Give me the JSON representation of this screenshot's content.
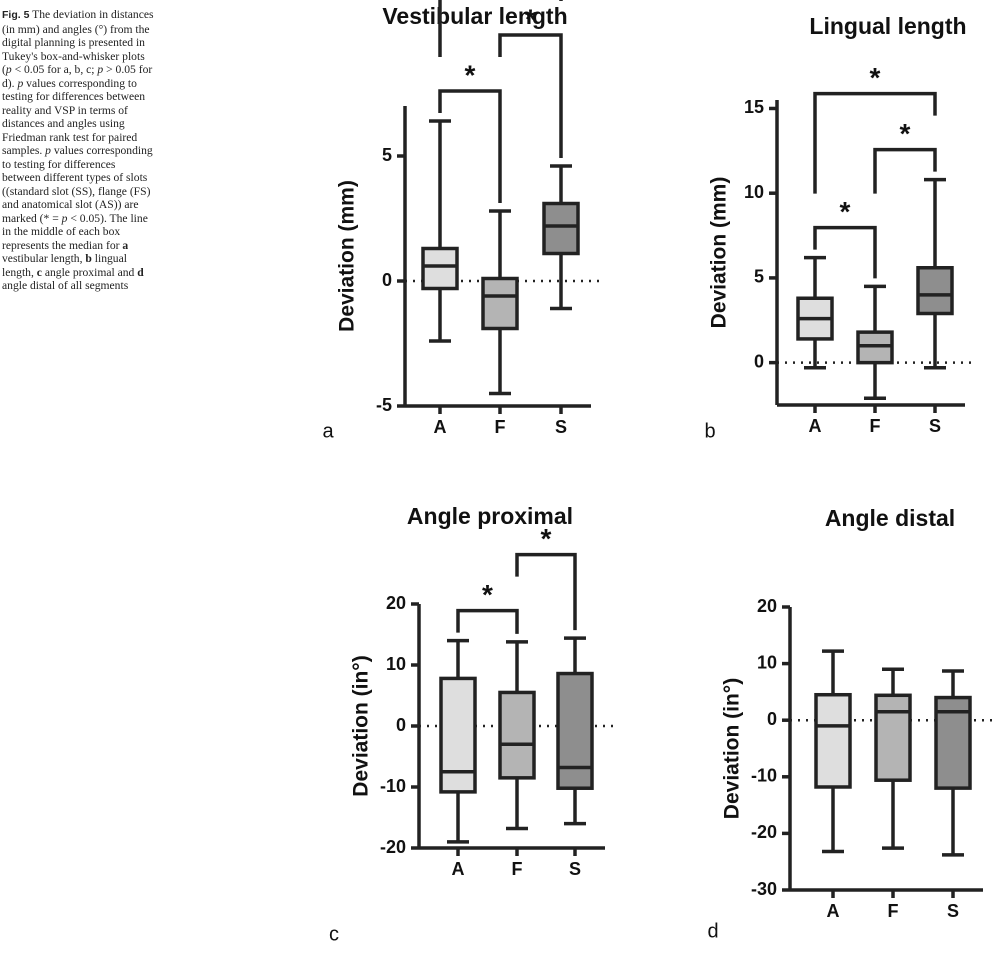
{
  "caption": {
    "label": "Fig. 5",
    "segments": [
      {
        "text": "The deviation in distances (in mm) and angles (°) from the digital planning is presented in Tukey's box-and-whisker plots (",
        "style": "normal"
      },
      {
        "text": "p",
        "style": "italic"
      },
      {
        "text": " < 0.05 for a, b, c; ",
        "style": "normal"
      },
      {
        "text": "p",
        "style": "italic"
      },
      {
        "text": " > 0.05 for d). ",
        "style": "normal"
      },
      {
        "text": "p",
        "style": "italic"
      },
      {
        "text": " values corresponding to testing for differences between reality and VSP in terms of distances and angles using Friedman rank test for paired samples. ",
        "style": "normal"
      },
      {
        "text": "p",
        "style": "italic"
      },
      {
        "text": " values corresponding to testing for differences between different types of slots ((standard slot (SS), flange (FS) and anatomical slot (AS)) are marked (* = ",
        "style": "normal"
      },
      {
        "text": "p",
        "style": "italic"
      },
      {
        "text": " < 0.05). The line in the middle of each box represents the median for ",
        "style": "normal"
      },
      {
        "text": "a",
        "style": "bold"
      },
      {
        "text": " vestibular length, ",
        "style": "normal"
      },
      {
        "text": "b",
        "style": "bold"
      },
      {
        "text": " lingual length, ",
        "style": "normal"
      },
      {
        "text": "c",
        "style": "bold"
      },
      {
        "text": " angle proximal and ",
        "style": "normal"
      },
      {
        "text": "d",
        "style": "bold"
      },
      {
        "text": " angle distal of all segments",
        "style": "normal"
      }
    ]
  },
  "chart_data": [
    {
      "type": "box",
      "title": "Vestibular length",
      "panel_label": "a",
      "y_label": "Deviation (mm)",
      "categories": [
        "A",
        "F",
        "S"
      ],
      "colors": [
        "#dedede",
        "#b4b4b4",
        "#8e8e8e"
      ],
      "ylim": [
        -5,
        7
      ],
      "yticks": [
        -5,
        0,
        5
      ],
      "zero_line": true,
      "boxes": [
        {
          "min": -2.4,
          "q1": -0.3,
          "median": 0.6,
          "q3": 1.3,
          "max": 6.4
        },
        {
          "min": -4.5,
          "q1": -1.9,
          "median": -0.6,
          "q3": 0.1,
          "max": 2.8
        },
        {
          "min": -1.1,
          "q1": 1.1,
          "median": 2.2,
          "q3": 3.1,
          "max": 4.6
        }
      ],
      "significance": [
        {
          "pair": [
            "A",
            "F"
          ],
          "label": "*"
        },
        {
          "pair": [
            "F",
            "S"
          ],
          "label": "*"
        },
        {
          "pair": [
            "A",
            "S"
          ],
          "label": "*"
        }
      ]
    },
    {
      "type": "box",
      "title": "Lingual length",
      "panel_label": "b",
      "y_label": "Deviation (mm)",
      "categories": [
        "A",
        "F",
        "S"
      ],
      "colors": [
        "#dedede",
        "#b4b4b4",
        "#8e8e8e"
      ],
      "ylim": [
        -2.5,
        15.5
      ],
      "yticks": [
        0,
        5,
        10,
        15
      ],
      "zero_line": true,
      "boxes": [
        {
          "min": -0.3,
          "q1": 1.4,
          "median": 2.6,
          "q3": 3.8,
          "max": 6.2
        },
        {
          "min": -2.1,
          "q1": 0,
          "median": 1,
          "q3": 1.8,
          "max": 4.5
        },
        {
          "min": -0.3,
          "q1": 2.9,
          "median": 4,
          "q3": 5.6,
          "max": 10.8
        }
      ],
      "significance": [
        {
          "pair": [
            "A",
            "F"
          ],
          "label": "*"
        },
        {
          "pair": [
            "F",
            "S"
          ],
          "label": "*"
        },
        {
          "pair": [
            "A",
            "S"
          ],
          "label": "*"
        }
      ]
    },
    {
      "type": "box",
      "title": "Angle proximal",
      "panel_label": "c",
      "y_label": "Deviation (in°)",
      "categories": [
        "A",
        "F",
        "S"
      ],
      "colors": [
        "#dedede",
        "#b4b4b4",
        "#8e8e8e"
      ],
      "ylim": [
        -20,
        20
      ],
      "yticks": [
        -20,
        -10,
        0,
        10,
        20
      ],
      "zero_line": true,
      "boxes": [
        {
          "min": -19,
          "q1": -10.8,
          "median": -7.5,
          "q3": 7.8,
          "max": 14
        },
        {
          "min": -16.8,
          "q1": -8.5,
          "median": -3,
          "q3": 5.5,
          "max": 13.8
        },
        {
          "min": -16,
          "q1": -10.2,
          "median": -6.8,
          "q3": 8.6,
          "max": 14.4
        }
      ],
      "significance": [
        {
          "pair": [
            "A",
            "F"
          ],
          "label": "*"
        },
        {
          "pair": [
            "F",
            "S"
          ],
          "label": "*"
        }
      ]
    },
    {
      "type": "box",
      "title": "Angle distal",
      "panel_label": "d",
      "y_label": "Deviation (in°)",
      "categories": [
        "A",
        "F",
        "S"
      ],
      "colors": [
        "#dedede",
        "#b4b4b4",
        "#8e8e8e"
      ],
      "ylim": [
        -30,
        20
      ],
      "yticks": [
        -30,
        -20,
        -10,
        0,
        10,
        20
      ],
      "zero_line": true,
      "boxes": [
        {
          "min": -23.2,
          "q1": -11.8,
          "median": -1,
          "q3": 4.5,
          "max": 12.2
        },
        {
          "min": -22.6,
          "q1": -10.6,
          "median": 1.5,
          "q3": 4.4,
          "max": 9
        },
        {
          "min": -23.8,
          "q1": -12,
          "median": 1.5,
          "q3": 4,
          "max": 8.7
        }
      ],
      "significance": []
    }
  ]
}
